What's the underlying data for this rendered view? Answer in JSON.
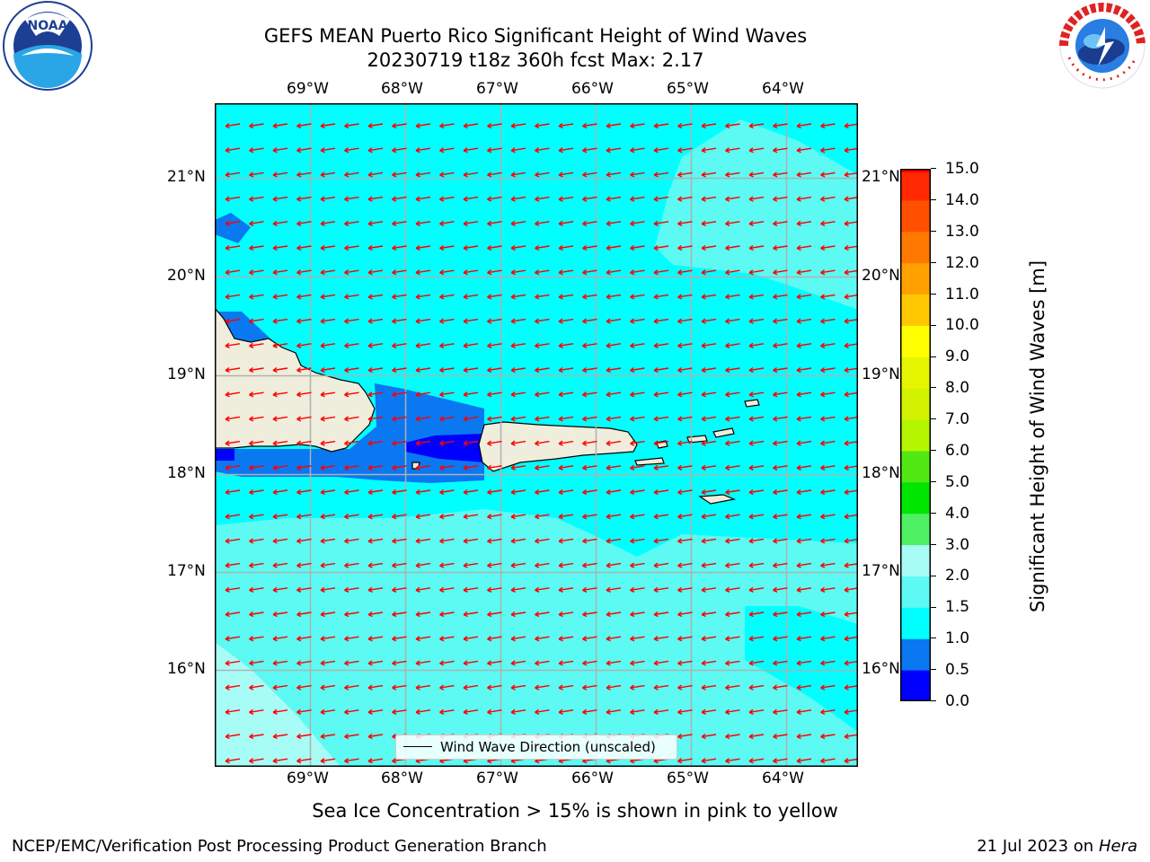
{
  "title": {
    "line1": "GEFS MEAN Puerto Rico Significant Height of Wind Waves",
    "line2": "20230719 t18z 360h fcst   Max: 2.17"
  },
  "logos": {
    "left": "noaa-logo",
    "right": "national-weather-service-logo"
  },
  "map": {
    "lon_ticks": [
      "69°W",
      "68°W",
      "67°W",
      "66°W",
      "65°W",
      "64°W"
    ],
    "lat_ticks": [
      "21°N",
      "20°N",
      "19°N",
      "18°N",
      "17°N",
      "16°N"
    ],
    "lon_range": [
      -70.0,
      -63.25
    ],
    "lat_range": [
      15.0,
      21.75
    ],
    "wind_wave_direction": "towards west, slightly south (from east-northeast)",
    "arrow_color": "#ff0000",
    "ocean_color": "#00ffff",
    "land_color": "#efeddc"
  },
  "legend": {
    "label": "Wind Wave Direction (unscaled)"
  },
  "colorbar": {
    "title": "Significant Height of Wind Waves [m]",
    "ticks": [
      "0.0",
      "0.5",
      "1.0",
      "1.5",
      "2.0",
      "3.0",
      "4.0",
      "5.0",
      "6.0",
      "7.0",
      "8.0",
      "9.0",
      "10.0",
      "11.0",
      "12.0",
      "13.0",
      "14.0",
      "15.0"
    ],
    "levels": [
      {
        "from": 0.0,
        "to": 0.5,
        "color": "#0000ff"
      },
      {
        "from": 0.5,
        "to": 1.0,
        "color": "#0a78f0"
      },
      {
        "from": 1.0,
        "to": 1.5,
        "color": "#00ffff"
      },
      {
        "from": 1.5,
        "to": 2.0,
        "color": "#5cfaf2"
      },
      {
        "from": 2.0,
        "to": 3.0,
        "color": "#a8fcf6"
      },
      {
        "from": 3.0,
        "to": 4.0,
        "color": "#50f064"
      },
      {
        "from": 4.0,
        "to": 5.0,
        "color": "#00e600"
      },
      {
        "from": 5.0,
        "to": 6.0,
        "color": "#52e814"
      },
      {
        "from": 6.0,
        "to": 7.0,
        "color": "#b5f500"
      },
      {
        "from": 7.0,
        "to": 8.0,
        "color": "#d2f200"
      },
      {
        "from": 8.0,
        "to": 9.0,
        "color": "#e6f500"
      },
      {
        "from": 9.0,
        "to": 10.0,
        "color": "#ffff00"
      },
      {
        "from": 10.0,
        "to": 11.0,
        "color": "#ffc800"
      },
      {
        "from": 11.0,
        "to": 12.0,
        "color": "#ffa000"
      },
      {
        "from": 12.0,
        "to": 13.0,
        "color": "#ff7800"
      },
      {
        "from": 13.0,
        "to": 14.0,
        "color": "#ff5000"
      },
      {
        "from": 14.0,
        "to": 15.0,
        "color": "#ff2800"
      },
      {
        "from": 15.0,
        "to": 15.0,
        "color": "#ff0000"
      }
    ]
  },
  "note": "Sea Ice Concentration > 15% is shown in pink to yellow",
  "footer": {
    "left": "NCEP/EMC/Verification Post Processing Product Generation Branch",
    "right_prefix": "21 Jul 2023 on ",
    "right_host": "Hera"
  }
}
